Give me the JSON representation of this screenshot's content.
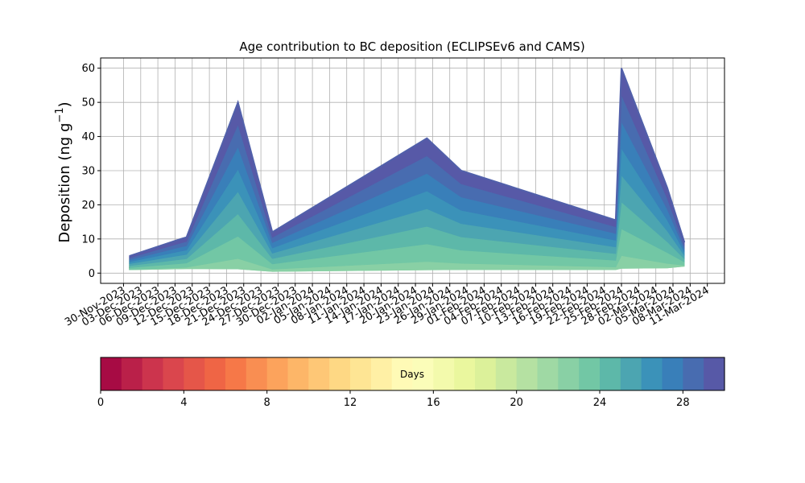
{
  "chart_data": {
    "type": "area",
    "title": "Age contribution to BC deposition (ECLIPSEv6 and CAMS)",
    "ylabel_main": "Deposition (ng g",
    "ylabel_sup": "−1",
    "ylabel_end": ")",
    "xlabel": "",
    "ylim": [
      -3,
      63
    ],
    "yticks": [
      0,
      10,
      20,
      30,
      40,
      50,
      60
    ],
    "xlim": [
      "2023-11-26",
      "2024-03-14"
    ],
    "xticks": [
      "2023-11-30",
      "2023-12-03",
      "2023-12-06",
      "2023-12-09",
      "2023-12-12",
      "2023-12-15",
      "2023-12-18",
      "2023-12-21",
      "2023-12-24",
      "2023-12-27",
      "2023-12-30",
      "2024-01-02",
      "2024-01-05",
      "2024-01-08",
      "2024-01-11",
      "2024-01-14",
      "2024-01-17",
      "2024-01-20",
      "2024-01-23",
      "2024-01-26",
      "2024-01-29",
      "2024-02-01",
      "2024-02-04",
      "2024-02-07",
      "2024-02-10",
      "2024-02-13",
      "2024-02-16",
      "2024-02-19",
      "2024-02-22",
      "2024-02-25",
      "2024-02-28",
      "2024-03-02",
      "2024-03-05",
      "2024-03-08",
      "2024-03-11"
    ],
    "xticklabels": [
      "30-Nov-2023",
      "03-Dec-2023",
      "06-Dec-2023",
      "09-Dec-2023",
      "12-Dec-2023",
      "15-Dec-2023",
      "18-Dec-2023",
      "21-Dec-2023",
      "24-Dec-2023",
      "27-Dec-2023",
      "30-Dec-2023",
      "02-Jan-2024",
      "05-Jan-2024",
      "08-Jan-2024",
      "11-Jan-2024",
      "14-Jan-2024",
      "17-Jan-2024",
      "20-Jan-2024",
      "23-Jan-2024",
      "26-Jan-2024",
      "29-Jan-2024",
      "01-Feb-2024",
      "04-Feb-2024",
      "07-Feb-2024",
      "10-Feb-2024",
      "13-Feb-2024",
      "16-Feb-2024",
      "19-Feb-2024",
      "22-Feb-2024",
      "25-Feb-2024",
      "28-Feb-2024",
      "02-Mar-2024",
      "05-Mar-2024",
      "08-Mar-2024",
      "11-Mar-2024"
    ],
    "grid": true,
    "x": [
      "2023-12-01",
      "2023-12-10",
      "2023-12-11",
      "2023-12-20",
      "2023-12-26",
      "2024-01-22",
      "2024-01-28",
      "2024-02-24",
      "2024-02-25",
      "2024-03-04",
      "2024-03-07"
    ],
    "total": [
      5,
      10,
      10.5,
      50,
      12,
      39.5,
      30,
      15.5,
      60,
      25,
      9
    ],
    "age_fractions": [
      [
        1,
        0.15,
        0.75,
        0.28,
        0.35
      ],
      [
        1,
        0.1,
        0.42,
        0.34,
        0.54
      ],
      [
        1,
        0.1,
        0.4,
        0.3,
        0.55
      ],
      [
        1,
        0.02,
        0.08,
        0.06,
        0.15
      ],
      [
        1,
        0.03,
        0.15,
        0.1,
        0.22
      ],
      [
        1,
        0.02,
        0.08,
        0.18,
        0.35
      ],
      [
        1,
        0.03,
        0.07,
        0.25,
        0.45
      ],
      [
        1,
        0.05,
        0.25,
        0.45,
        0.65
      ],
      [
        1,
        0.02,
        0.06,
        0.1,
        0.2
      ],
      [
        1,
        0.05,
        0.2,
        0.35,
        0.4
      ],
      [
        1,
        0.2,
        0.5,
        0.7,
        0.8
      ]
    ],
    "colorbar": {
      "label": "Days",
      "min": 0,
      "max": 30,
      "levels": 30,
      "ticks": [
        0,
        4,
        8,
        12,
        16,
        20,
        24,
        28
      ],
      "colormap": "Spectral",
      "colors": [
        "#9e0142",
        "#d53e4f",
        "#f46d43",
        "#fdae61",
        "#fee08b",
        "#ffffbf",
        "#e6f598",
        "#abdda4",
        "#66c2a5",
        "#3288bd",
        "#5e4fa2"
      ]
    }
  }
}
